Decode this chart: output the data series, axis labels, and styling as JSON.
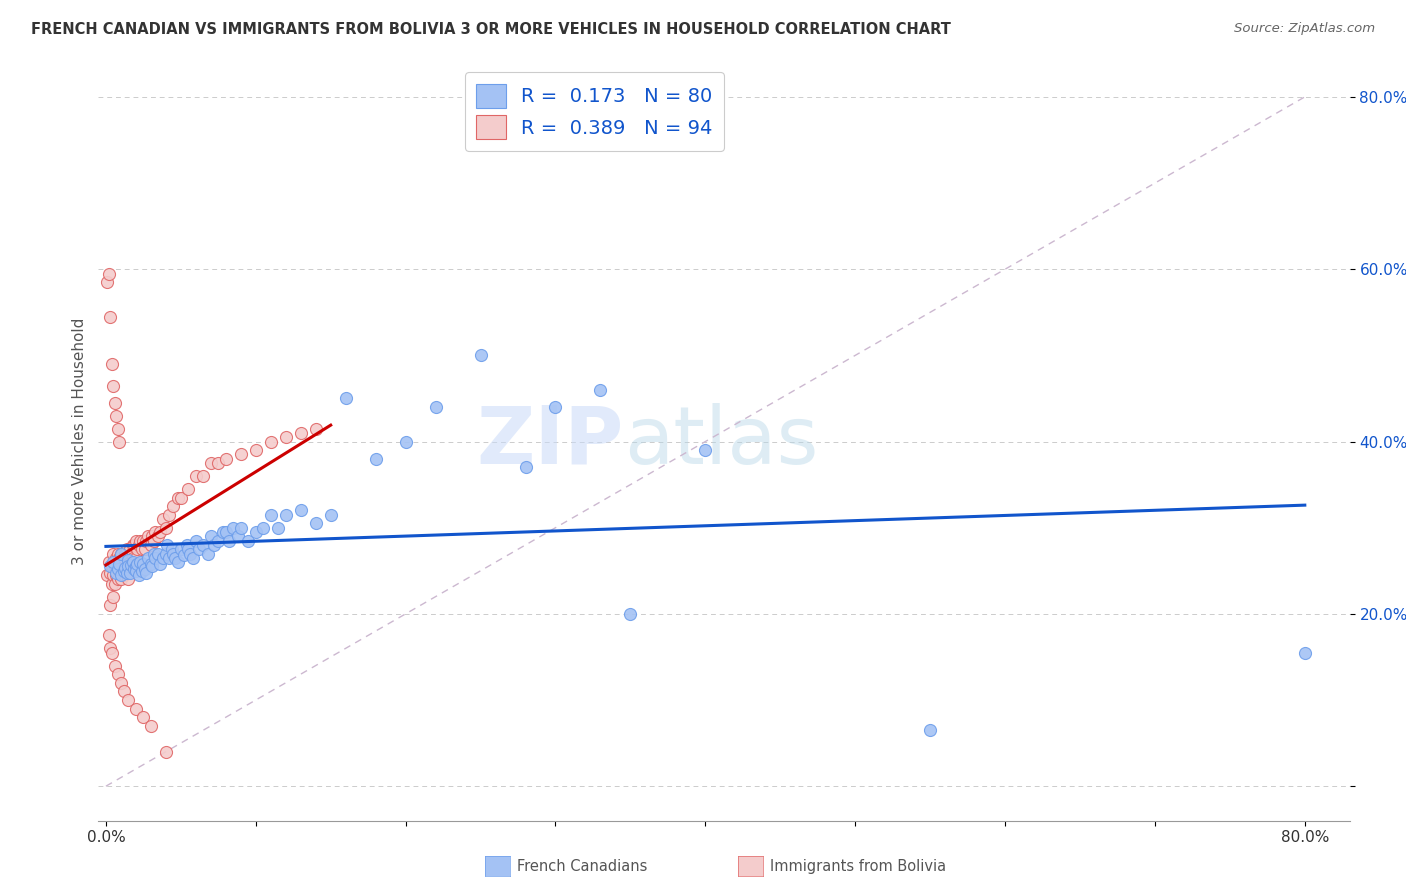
{
  "title": "FRENCH CANADIAN VS IMMIGRANTS FROM BOLIVIA 3 OR MORE VEHICLES IN HOUSEHOLD CORRELATION CHART",
  "source": "Source: ZipAtlas.com",
  "ylabel": "3 or more Vehicles in Household",
  "xlim": [
    -0.005,
    0.83
  ],
  "ylim": [
    -0.04,
    0.84
  ],
  "blue_R": 0.173,
  "blue_N": 80,
  "pink_R": 0.389,
  "pink_N": 94,
  "blue_color": "#a4c2f4",
  "pink_color": "#f4cccc",
  "blue_edge_color": "#6d9eeb",
  "pink_edge_color": "#e06666",
  "blue_line_color": "#1155cc",
  "pink_line_color": "#cc0000",
  "ref_line_color": "#ccb8d0",
  "watermark_zip": "ZIP",
  "watermark_atlas": "atlas",
  "legend_label_blue": "French Canadians",
  "legend_label_pink": "Immigrants from Bolivia",
  "blue_dots_x": [
    0.003,
    0.005,
    0.007,
    0.008,
    0.009,
    0.01,
    0.01,
    0.012,
    0.013,
    0.014,
    0.015,
    0.015,
    0.016,
    0.017,
    0.018,
    0.019,
    0.02,
    0.02,
    0.021,
    0.022,
    0.023,
    0.024,
    0.025,
    0.026,
    0.027,
    0.028,
    0.03,
    0.031,
    0.032,
    0.033,
    0.035,
    0.036,
    0.038,
    0.04,
    0.041,
    0.042,
    0.044,
    0.045,
    0.046,
    0.048,
    0.05,
    0.052,
    0.054,
    0.055,
    0.056,
    0.058,
    0.06,
    0.062,
    0.065,
    0.068,
    0.07,
    0.072,
    0.075,
    0.078,
    0.08,
    0.082,
    0.085,
    0.088,
    0.09,
    0.095,
    0.1,
    0.105,
    0.11,
    0.115,
    0.12,
    0.13,
    0.14,
    0.15,
    0.16,
    0.18,
    0.2,
    0.22,
    0.25,
    0.28,
    0.3,
    0.33,
    0.35,
    0.4,
    0.55,
    0.8
  ],
  "blue_dots_y": [
    0.255,
    0.26,
    0.248,
    0.252,
    0.258,
    0.245,
    0.27,
    0.25,
    0.253,
    0.248,
    0.262,
    0.255,
    0.248,
    0.257,
    0.26,
    0.252,
    0.255,
    0.25,
    0.258,
    0.245,
    0.26,
    0.25,
    0.258,
    0.252,
    0.248,
    0.265,
    0.258,
    0.255,
    0.27,
    0.265,
    0.27,
    0.258,
    0.265,
    0.27,
    0.28,
    0.265,
    0.275,
    0.27,
    0.265,
    0.26,
    0.275,
    0.268,
    0.28,
    0.275,
    0.27,
    0.265,
    0.285,
    0.275,
    0.28,
    0.27,
    0.29,
    0.28,
    0.285,
    0.295,
    0.295,
    0.285,
    0.3,
    0.29,
    0.3,
    0.285,
    0.295,
    0.3,
    0.315,
    0.3,
    0.315,
    0.32,
    0.305,
    0.315,
    0.45,
    0.38,
    0.4,
    0.44,
    0.5,
    0.37,
    0.44,
    0.46,
    0.2,
    0.39,
    0.065,
    0.155
  ],
  "pink_dots_x": [
    0.001,
    0.002,
    0.003,
    0.003,
    0.004,
    0.004,
    0.005,
    0.005,
    0.005,
    0.006,
    0.006,
    0.007,
    0.007,
    0.008,
    0.008,
    0.008,
    0.009,
    0.009,
    0.01,
    0.01,
    0.01,
    0.011,
    0.011,
    0.012,
    0.012,
    0.013,
    0.013,
    0.014,
    0.014,
    0.015,
    0.015,
    0.016,
    0.016,
    0.017,
    0.017,
    0.018,
    0.018,
    0.019,
    0.019,
    0.02,
    0.02,
    0.021,
    0.022,
    0.023,
    0.024,
    0.025,
    0.026,
    0.027,
    0.028,
    0.03,
    0.031,
    0.032,
    0.033,
    0.035,
    0.036,
    0.038,
    0.04,
    0.042,
    0.045,
    0.048,
    0.05,
    0.055,
    0.06,
    0.065,
    0.07,
    0.075,
    0.08,
    0.09,
    0.1,
    0.11,
    0.12,
    0.13,
    0.14,
    0.001,
    0.002,
    0.003,
    0.004,
    0.005,
    0.006,
    0.007,
    0.008,
    0.009,
    0.002,
    0.003,
    0.004,
    0.006,
    0.008,
    0.01,
    0.012,
    0.015,
    0.02,
    0.025,
    0.03,
    0.04
  ],
  "pink_dots_y": [
    0.245,
    0.26,
    0.248,
    0.21,
    0.235,
    0.255,
    0.22,
    0.245,
    0.27,
    0.235,
    0.255,
    0.245,
    0.265,
    0.24,
    0.255,
    0.27,
    0.25,
    0.265,
    0.24,
    0.255,
    0.27,
    0.25,
    0.26,
    0.245,
    0.265,
    0.25,
    0.27,
    0.255,
    0.275,
    0.24,
    0.265,
    0.26,
    0.275,
    0.25,
    0.27,
    0.265,
    0.28,
    0.255,
    0.28,
    0.265,
    0.285,
    0.275,
    0.28,
    0.285,
    0.275,
    0.285,
    0.275,
    0.285,
    0.29,
    0.28,
    0.29,
    0.285,
    0.295,
    0.29,
    0.295,
    0.31,
    0.3,
    0.315,
    0.325,
    0.335,
    0.335,
    0.345,
    0.36,
    0.36,
    0.375,
    0.375,
    0.38,
    0.385,
    0.39,
    0.4,
    0.405,
    0.41,
    0.415,
    0.585,
    0.595,
    0.545,
    0.49,
    0.465,
    0.445,
    0.43,
    0.415,
    0.4,
    0.175,
    0.16,
    0.155,
    0.14,
    0.13,
    0.12,
    0.11,
    0.1,
    0.09,
    0.08,
    0.07,
    0.04
  ]
}
